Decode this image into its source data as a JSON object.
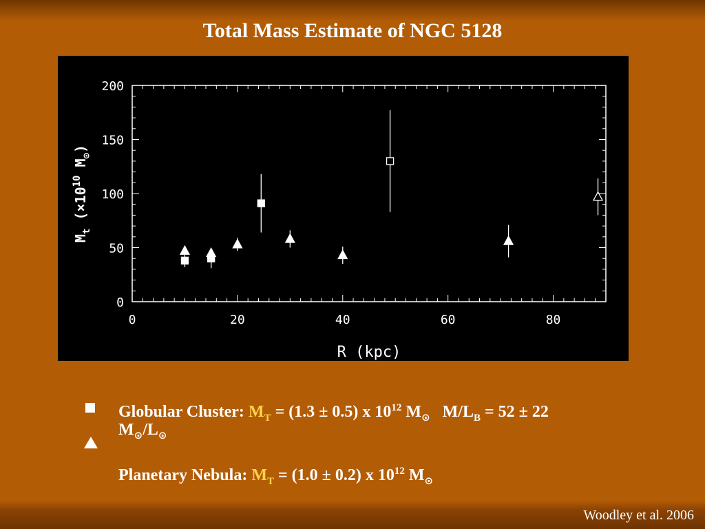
{
  "slide": {
    "title": "Total Mass Estimate of NGC 5128",
    "citation": "Woodley et al. 2006"
  },
  "legend": {
    "gc": {
      "label": "Globular Cluster:",
      "mass_prefix": "M",
      "mass_sub": "T",
      "mass_value": " = (1.3 ± 0.5) x 10",
      "mass_exp": "12",
      "mass_unit": " M",
      "sun_symbol": "⊙",
      "ml_prefix": "M/L",
      "ml_sub": "B",
      "ml_value": " = 52 ± 22",
      "ml_unit_line2_a": "M",
      "ml_unit_line2_b": "/L",
      "ml_unit_line2_sun": "⊙"
    },
    "pn": {
      "label": "Planetary Nebula:",
      "mass_prefix": "M",
      "mass_sub": "T",
      "mass_value": " = (1.0 ± 0.2) x 10",
      "mass_exp": "12",
      "mass_unit": " M",
      "sun_symbol": "⊙"
    }
  },
  "chart_data": {
    "type": "scatter",
    "title": "",
    "xlabel": "R (kpc)",
    "ylabel": "M_t (×10^10 M_⊙)",
    "xlim": [
      0,
      90
    ],
    "ylim": [
      0,
      200
    ],
    "xticks": [
      0,
      20,
      40,
      60,
      80
    ],
    "yticks": [
      0,
      50,
      100,
      150,
      200
    ],
    "grid": false,
    "background": "#000000",
    "foreground": "#ffffff",
    "series": [
      {
        "marker": "square-filled",
        "points": [
          {
            "x": 10,
            "y": 38,
            "err": 6
          },
          {
            "x": 15,
            "y": 40,
            "err": 9
          },
          {
            "x": 24.5,
            "y": 91,
            "err": 27
          }
        ]
      },
      {
        "marker": "triangle-filled",
        "points": [
          {
            "x": 10,
            "y": 47,
            "err": 0
          },
          {
            "x": 15,
            "y": 45,
            "err": 0
          },
          {
            "x": 20,
            "y": 53,
            "err": 6
          },
          {
            "x": 30,
            "y": 58,
            "err": 8
          },
          {
            "x": 40,
            "y": 43,
            "err": 8
          },
          {
            "x": 71.5,
            "y": 56,
            "err": 15
          }
        ]
      },
      {
        "marker": "square-open",
        "points": [
          {
            "x": 49,
            "y": 130,
            "err": 47
          }
        ]
      },
      {
        "marker": "triangle-open",
        "points": [
          {
            "x": 88.5,
            "y": 97,
            "err": 17
          }
        ]
      }
    ]
  }
}
